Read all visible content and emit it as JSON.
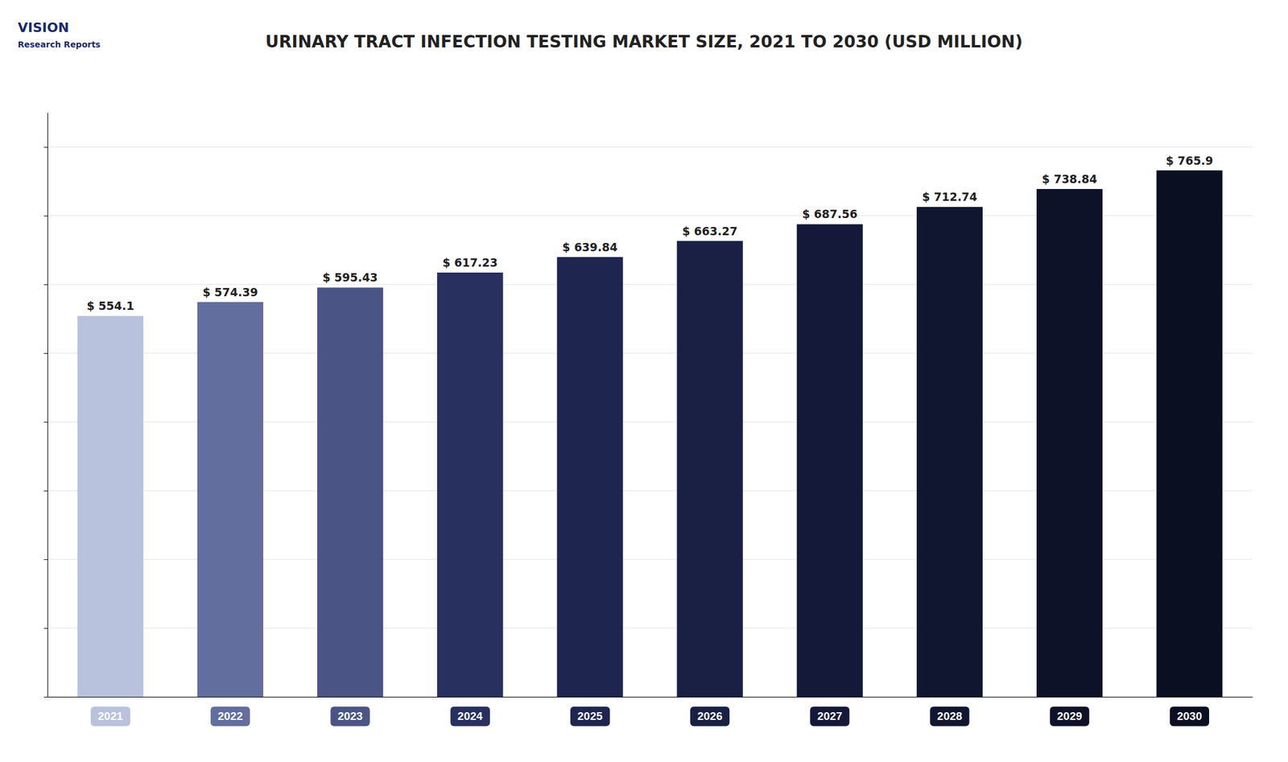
{
  "chart_data": {
    "type": "bar",
    "title": "URINARY TRACT INFECTION TESTING MARKET SIZE, 2021 TO 2030 (USD MILLION)",
    "annotations": [
      "VISION",
      "Research Reports"
    ],
    "categories": [
      "2021",
      "2022",
      "2023",
      "2024",
      "2025",
      "2026",
      "2027",
      "2028",
      "2029",
      "2030"
    ],
    "values": [
      554.1,
      574.39,
      595.43,
      617.23,
      639.84,
      663.27,
      687.56,
      712.74,
      738.84,
      765.9
    ],
    "value_labels": [
      "$ 554.1",
      "$ 574.39",
      "$ 595.43",
      "$ 617.23",
      "$ 639.84",
      "$ 663.27",
      "$ 687.56",
      "$ 712.74",
      "$ 738.84",
      "$ 765.9"
    ],
    "data_labels": true,
    "colors": [
      "#b8c2dc",
      "#616e9e",
      "#4a5585",
      "#283060",
      "#1e2650",
      "#192044",
      "#14193a",
      "#111630",
      "#0e1228",
      "#0b0f22"
    ],
    "ylim": [
      0,
      850
    ],
    "yticks": [
      0,
      100,
      200,
      300,
      400,
      500,
      600,
      700,
      800
    ],
    "grid": true,
    "tick_labels": "x"
  }
}
